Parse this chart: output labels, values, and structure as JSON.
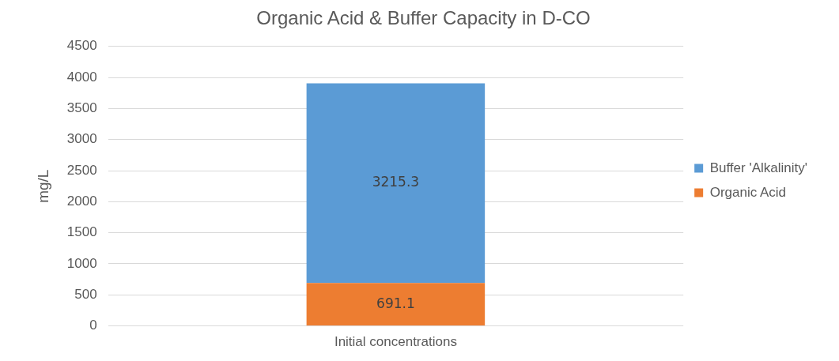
{
  "chart_data": {
    "type": "bar",
    "title": "Organic Acid & Buffer Capacity in D-CO",
    "ylabel": "mg/L",
    "categories": [
      "Initial concentrations"
    ],
    "stacked": true,
    "series": [
      {
        "name": "Organic Acid",
        "color": "#ed7d31",
        "values": [
          691.1
        ]
      },
      {
        "name": "Buffer 'Alkalinity'",
        "color": "#5b9bd5",
        "values": [
          3215.3
        ]
      }
    ],
    "ylim": [
      0,
      4500
    ],
    "yticks": [
      0,
      500,
      1000,
      1500,
      2000,
      2500,
      3000,
      3500,
      4000,
      4500
    ],
    "grid": "y",
    "legend": "right",
    "data_labels": true
  }
}
